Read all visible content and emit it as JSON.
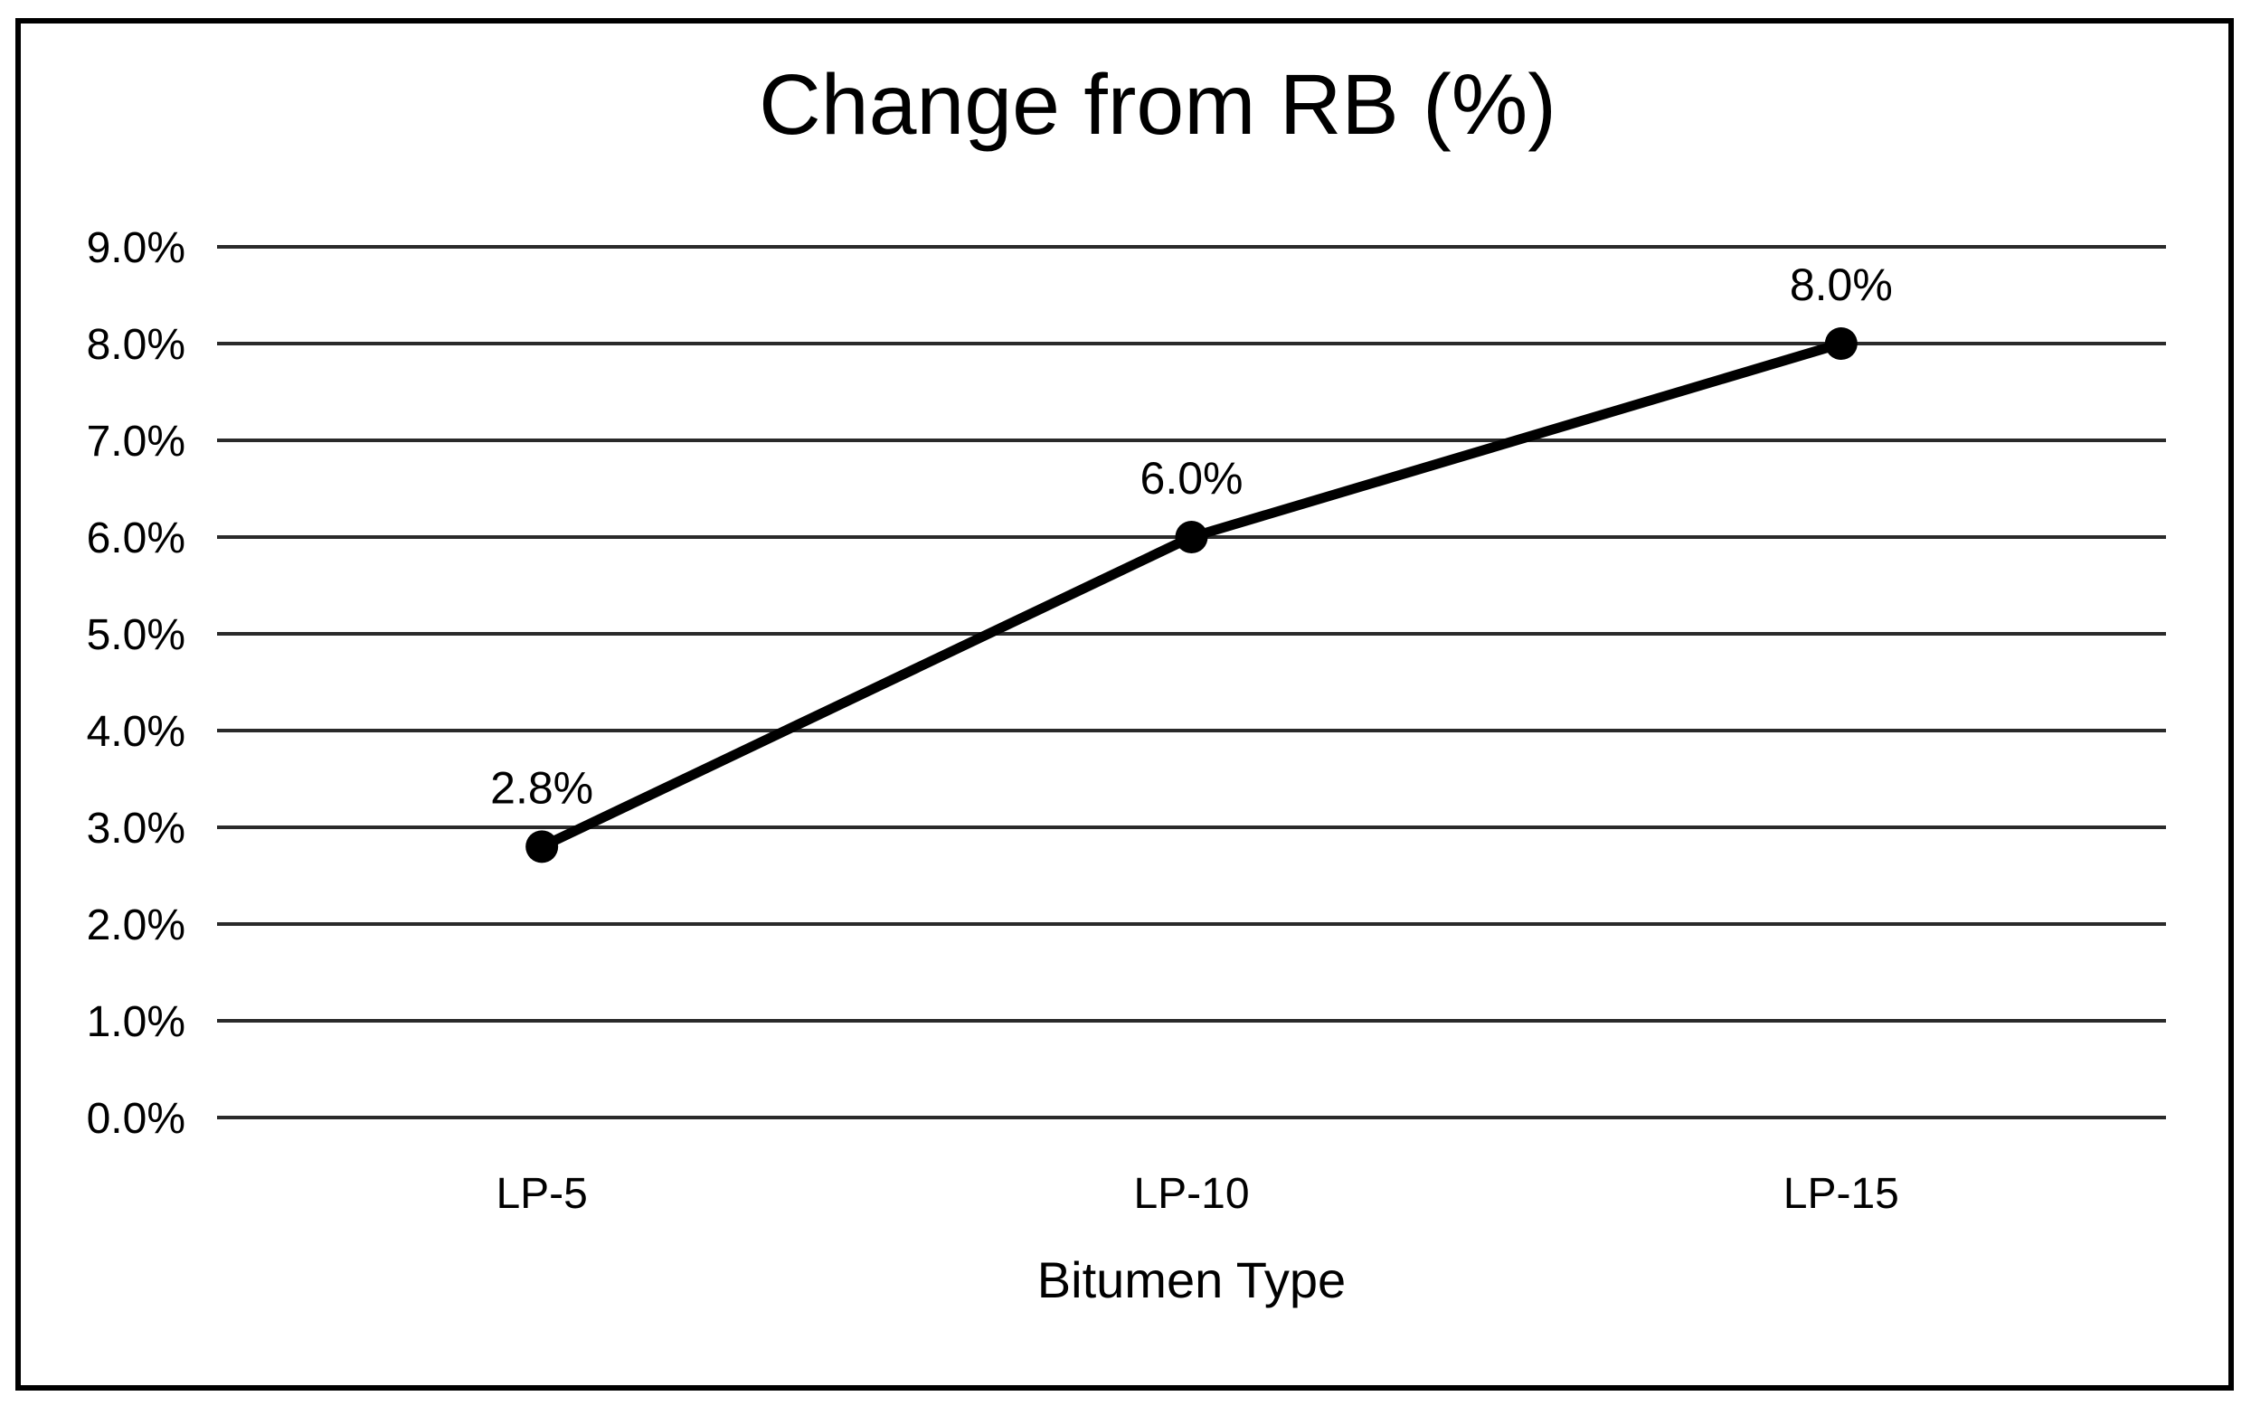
{
  "chart_data": {
    "type": "line",
    "title": "Change from RB (%)",
    "xlabel": "Bitumen Type",
    "ylabel": "",
    "categories": [
      "LP-5",
      "LP-10",
      "LP-15"
    ],
    "series": [
      {
        "name": "Change from RB",
        "values": [
          2.8,
          6.0,
          8.0
        ],
        "data_labels": [
          "2.8%",
          "6.0%",
          "8.0%"
        ]
      }
    ],
    "ylim": [
      0,
      9
    ],
    "ytick_step": 1,
    "ytick_labels": [
      "0.0%",
      "1.0%",
      "2.0%",
      "3.0%",
      "4.0%",
      "5.0%",
      "6.0%",
      "7.0%",
      "8.0%",
      "9.0%"
    ],
    "grid": true,
    "legend": "none",
    "line_color": "#000000",
    "marker": "circle",
    "grid_color": "#2a2a2a",
    "frame_color": "#000000",
    "background": "#ffffff"
  }
}
